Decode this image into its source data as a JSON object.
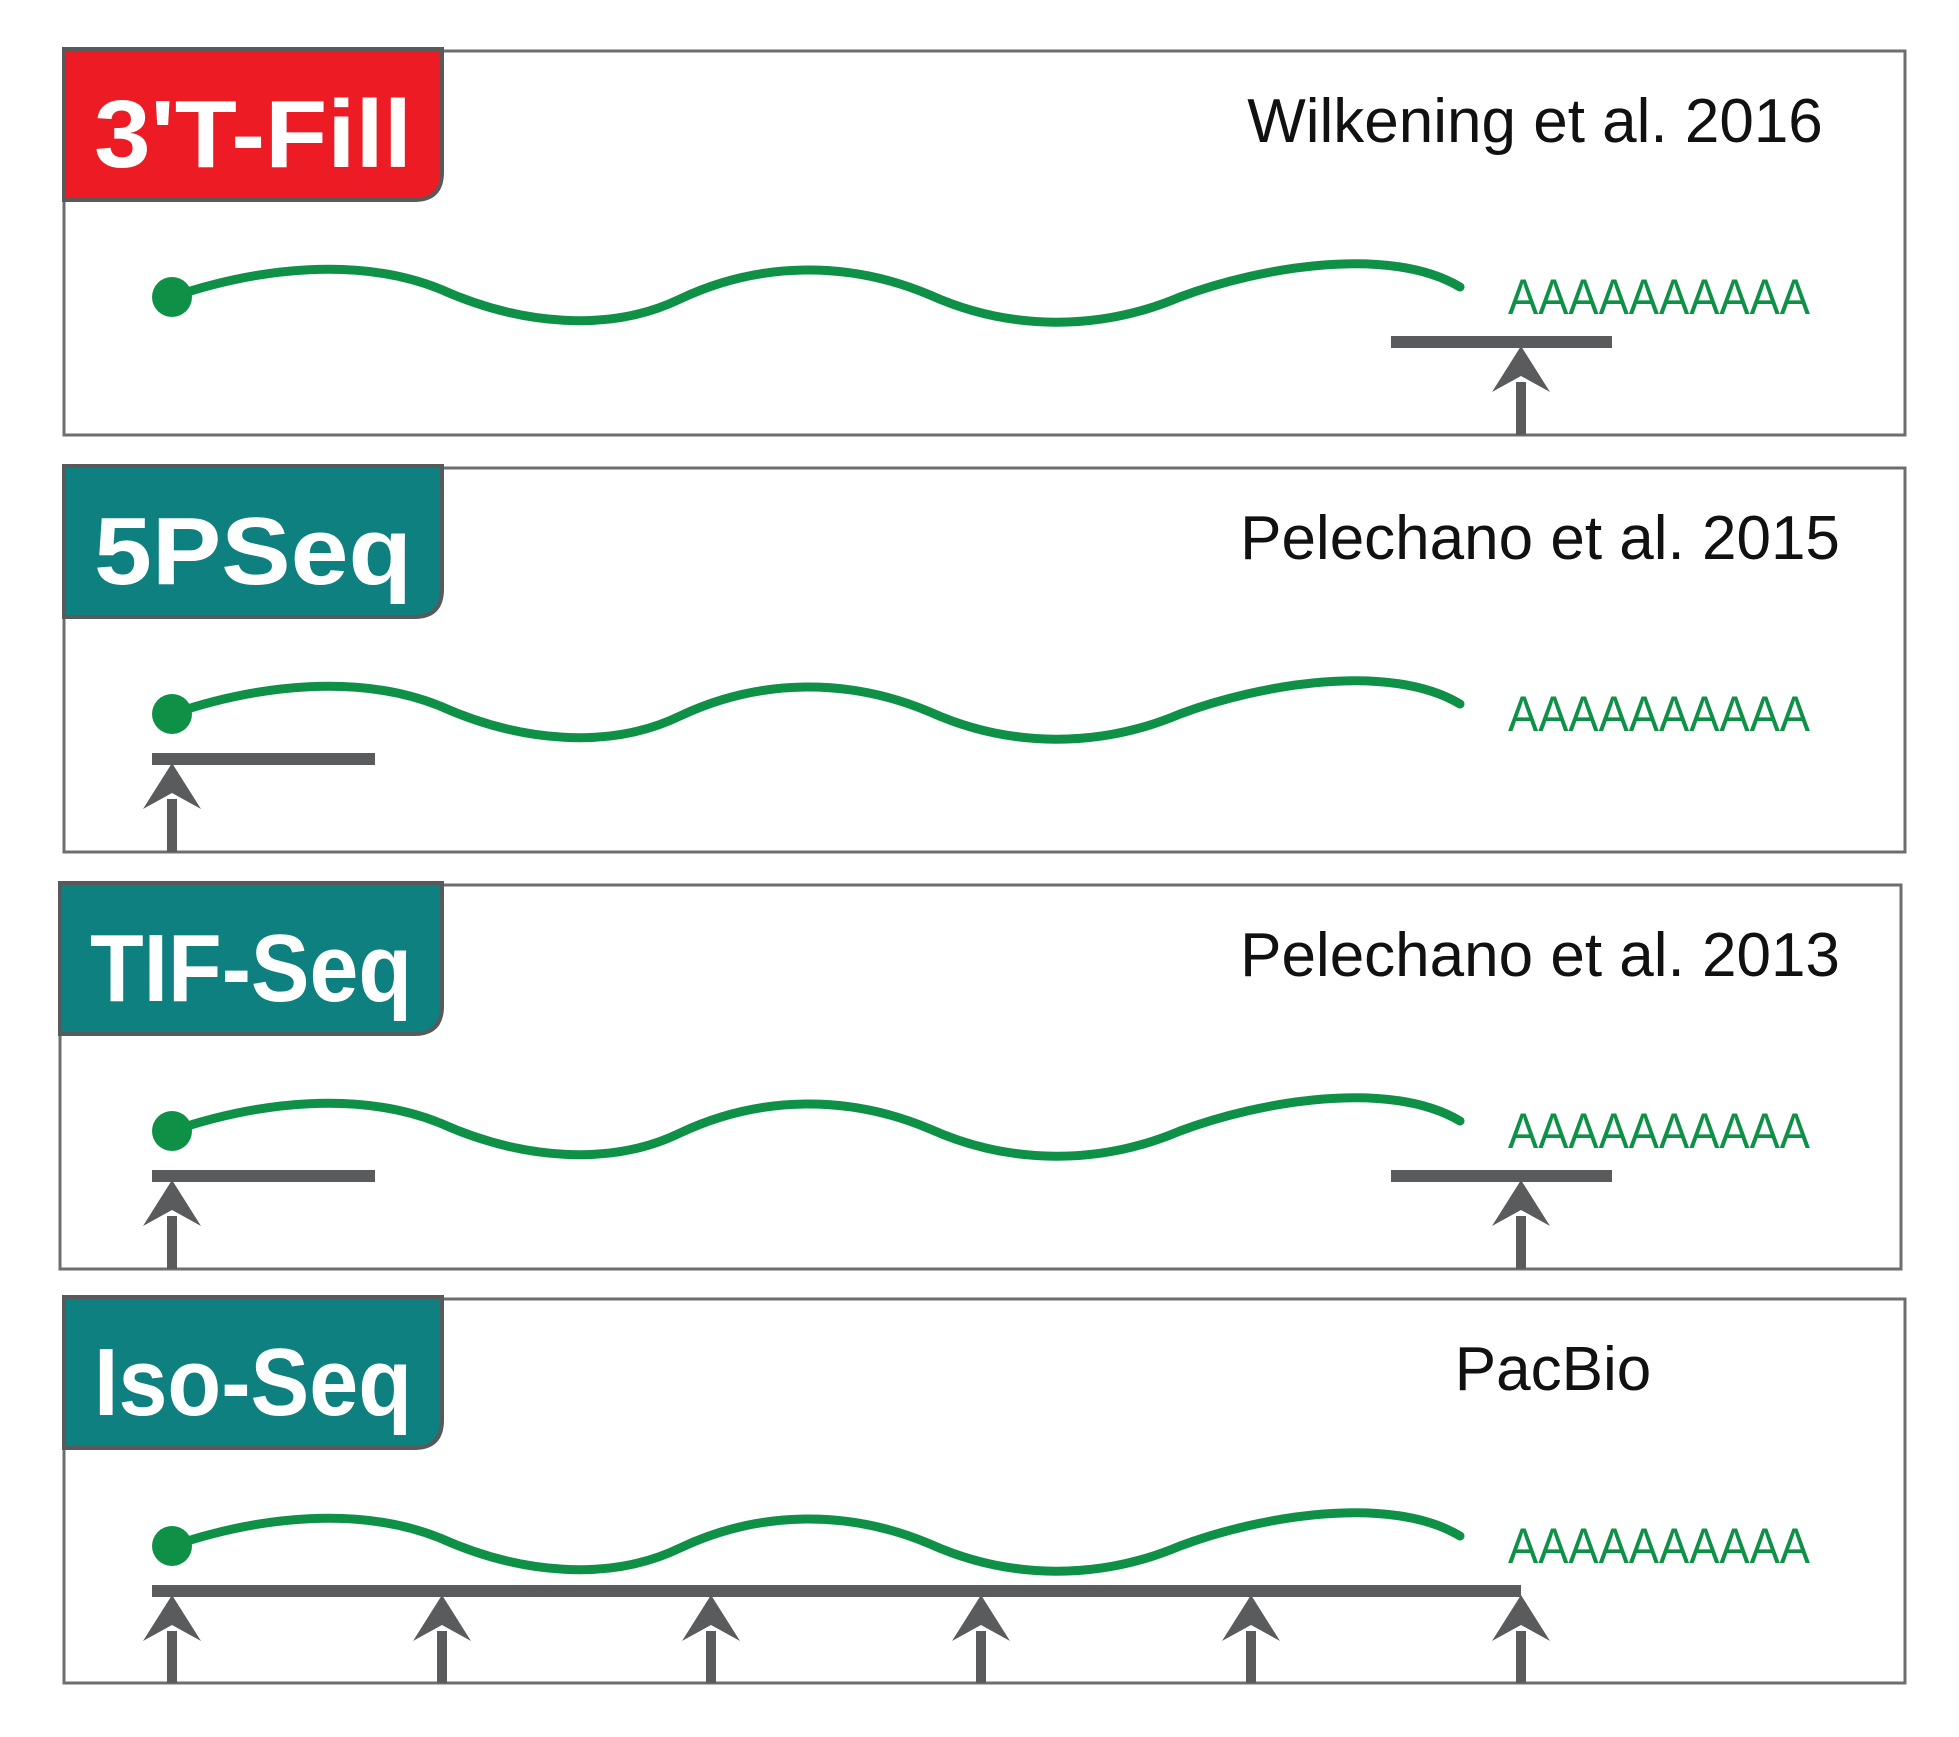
{
  "colors": {
    "badge_red": "#ed1c24",
    "badge_teal": "#0f8080",
    "rna_green": "#0e9147",
    "read_gray": "#5a5b5d",
    "frame_gray": "#6d6e71"
  },
  "panels": [
    {
      "method": "3'T-Fill",
      "citation": "Wilkening et al. 2016",
      "polya": "AAAAAAAAAA",
      "badge_color": "red",
      "reads": [
        "3-prime-end"
      ]
    },
    {
      "method": "5PSeq",
      "citation": "Pelechano et al. 2015",
      "polya": "AAAAAAAAAA",
      "badge_color": "teal",
      "reads": [
        "5-prime-end"
      ]
    },
    {
      "method": "TIF-Seq",
      "citation": "Pelechano et al. 2013",
      "polya": "AAAAAAAAAA",
      "badge_color": "teal",
      "reads": [
        "5-prime-end",
        "3-prime-end"
      ]
    },
    {
      "method": "Iso-Seq",
      "citation": "PacBio",
      "polya": "AAAAAAAAAA",
      "badge_color": "teal",
      "reads": [
        "full-length"
      ]
    }
  ]
}
